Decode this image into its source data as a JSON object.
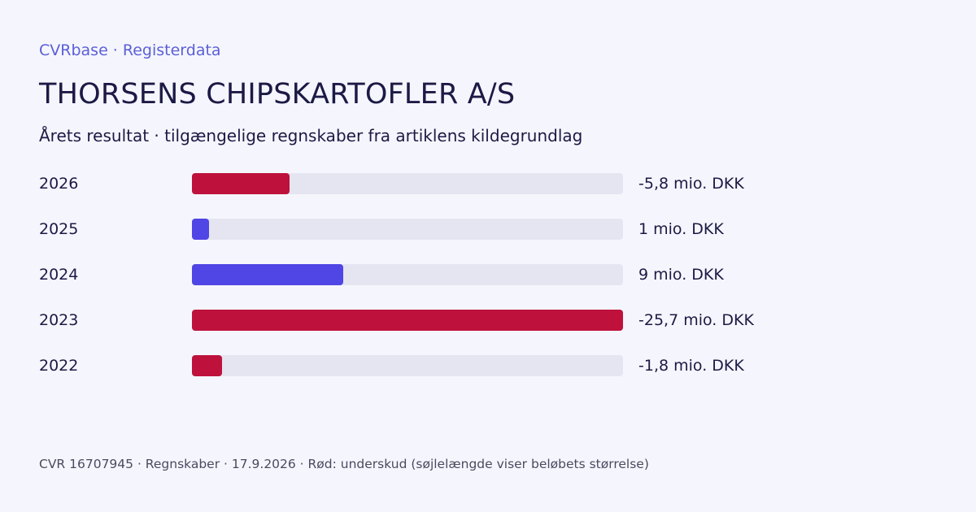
{
  "header": {
    "source": "CVRbase · Registerdata",
    "title": "THORSENS CHIPSKARTOFLER A/S",
    "subtitle": "Årets resultat · tilgængelige regnskaber fra artiklens kildegrundlag"
  },
  "chart_data": {
    "type": "bar",
    "orientation": "horizontal",
    "categories": [
      "2026",
      "2025",
      "2024",
      "2023",
      "2022"
    ],
    "values": [
      -5.8,
      1,
      9,
      -25.7,
      -1.8
    ],
    "value_labels": [
      "-5,8 mio. DKK",
      "1 mio. DKK",
      "9 mio. DKK",
      "-25,7 mio. DKK",
      "-1,8 mio. DKK"
    ],
    "unit": "mio. DKK",
    "scale": "absolute value",
    "colors": {
      "positive": "#5046e5",
      "negative": "#be123c",
      "track": "#e4e5f0"
    }
  },
  "footer": {
    "text": "CVR 16707945 · Regnskaber · 17.9.2026 · Rød: underskud (søjlelængde viser beløbets størrelse)"
  }
}
